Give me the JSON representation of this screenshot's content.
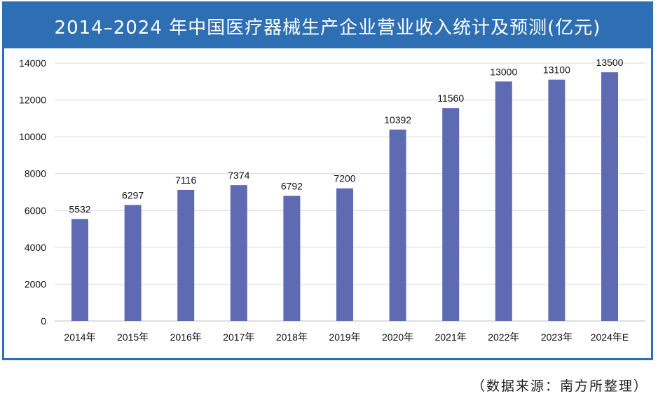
{
  "header": {
    "title": "2014–2024 年中国医疗器械生产企业营业收入统计及预测(亿元)"
  },
  "footer": {
    "source": "（数据来源：南方所整理）"
  },
  "colors": {
    "bar": "#5e6bb2",
    "frame": "#2e6fb4",
    "grid": "#d9d9d9"
  },
  "chart_data": {
    "type": "bar",
    "title": "2014–2024 年中国医疗器械生产企业营业收入统计及预测(亿元)",
    "xlabel": "",
    "ylabel": "",
    "categories": [
      "2014年",
      "2015年",
      "2016年",
      "2017年",
      "2018年",
      "2019年",
      "2020年",
      "2021年",
      "2022年",
      "2023年",
      "2024年E"
    ],
    "values": [
      5532,
      6297,
      7116,
      7374,
      6792,
      7200,
      10392,
      11560,
      13000,
      13100,
      13500
    ],
    "ylim": [
      0,
      14000
    ],
    "yticks": [
      0,
      2000,
      4000,
      6000,
      8000,
      10000,
      12000,
      14000
    ],
    "grid": true,
    "legend": "none"
  }
}
